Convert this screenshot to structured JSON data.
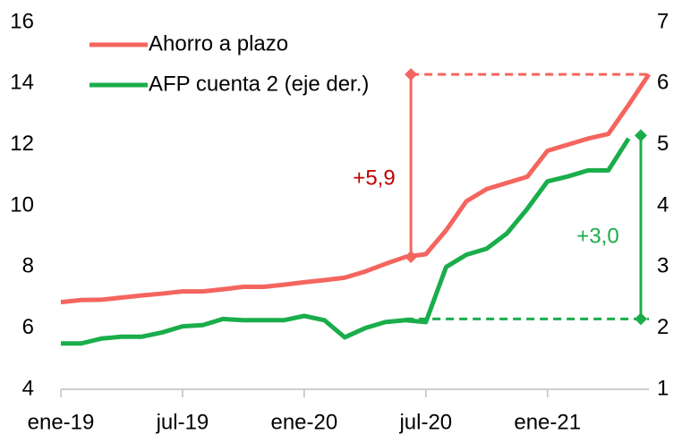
{
  "chart_data": {
    "type": "line",
    "categories": [
      "ene-19",
      null,
      null,
      null,
      null,
      null,
      "jul-19",
      null,
      null,
      null,
      null,
      null,
      "ene-20",
      null,
      null,
      null,
      null,
      null,
      "jul-20",
      null,
      null,
      null,
      null,
      null,
      "ene-21",
      null,
      null,
      null,
      null,
      null
    ],
    "series": [
      {
        "name": "Ahorro a plazo",
        "color": "#f4655f",
        "axis": "y",
        "values": [
          6.85,
          6.92,
          6.93,
          7.0,
          7.07,
          7.13,
          7.2,
          7.2,
          7.27,
          7.35,
          7.35,
          7.42,
          7.5,
          7.57,
          7.65,
          7.85,
          8.1,
          8.33,
          8.42,
          9.2,
          10.15,
          10.55,
          10.75,
          10.95,
          11.8,
          12.0,
          12.2,
          12.35,
          13.3,
          14.3
        ]
      },
      {
        "name": "AFP cuenta 2 (eje der.)",
        "color": "#1aad4b",
        "axis": "y2",
        "values": [
          1.75,
          1.75,
          1.83,
          1.86,
          1.86,
          1.93,
          2.03,
          2.05,
          2.15,
          2.13,
          2.13,
          2.13,
          2.2,
          2.13,
          1.85,
          2.0,
          2.1,
          2.13,
          2.1,
          3.0,
          3.2,
          3.3,
          3.55,
          3.95,
          4.4,
          4.48,
          4.58,
          4.58,
          5.1,
          null
        ]
      }
    ],
    "ylim": [
      4,
      16
    ],
    "yticks": [
      4,
      6,
      8,
      10,
      12,
      14,
      16
    ],
    "y2lim": [
      1,
      7
    ],
    "y2ticks": [
      1,
      2,
      3,
      4,
      5,
      6,
      7
    ],
    "grid": false,
    "legend": "upper left",
    "annotations": [
      {
        "text": "+5,9",
        "color": "#c00000",
        "line_color": "#f4655f",
        "axis": "y",
        "from": 8.33,
        "to": 14.3
      },
      {
        "text": "+3,0",
        "color": "#1aad4b",
        "line_color": "#1aad4b",
        "axis": "y2",
        "from": 2.15,
        "to": 5.15
      }
    ]
  }
}
